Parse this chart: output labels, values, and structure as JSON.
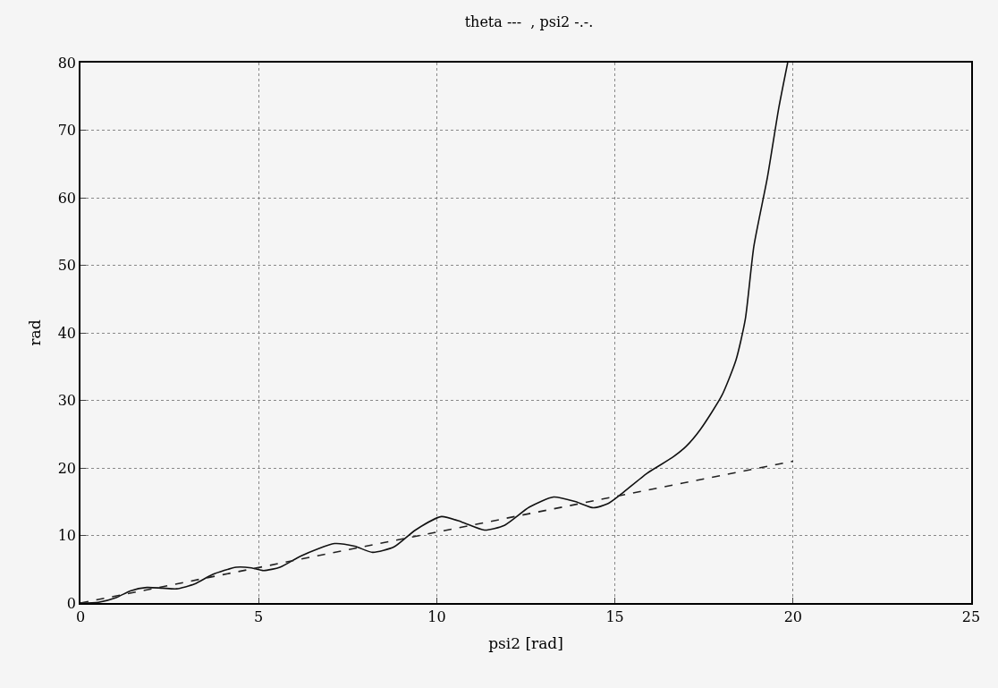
{
  "chart_data": {
    "type": "line",
    "title": "theta ---  , psi2 -.-.",
    "xlabel": "psi2 [rad]",
    "ylabel": "rad",
    "xlim": [
      0,
      25
    ],
    "ylim": [
      0,
      80
    ],
    "xticks": [
      0,
      5,
      10,
      15,
      20,
      25
    ],
    "yticks": [
      0,
      10,
      20,
      30,
      40,
      50,
      60,
      70,
      80
    ],
    "grid": true,
    "series": [
      {
        "color": "#111111",
        "line_style": "solid",
        "x": [
          0,
          0.5,
          1.0,
          1.4,
          1.86,
          2.3,
          2.7,
          3.2,
          3.7,
          4.37,
          4.8,
          5.14,
          5.6,
          6.2,
          7.13,
          7.7,
          8.2,
          8.8,
          9.4,
          10.13,
          10.7,
          11.34,
          11.9,
          12.6,
          13.28,
          13.9,
          14.4,
          14.8,
          15.17,
          15.9,
          16.6,
          17.0,
          17.4,
          18.0,
          18.4,
          18.66,
          18.9,
          19.28,
          19.6,
          19.85
        ],
        "values": [
          0,
          0.1,
          0.8,
          1.8,
          2.3,
          2.2,
          2.1,
          2.8,
          4.2,
          5.3,
          5.2,
          4.8,
          5.3,
          7.0,
          8.8,
          8.4,
          7.5,
          8.3,
          10.8,
          12.8,
          12.0,
          10.8,
          11.5,
          14.2,
          15.7,
          15.0,
          14.1,
          14.7,
          16.1,
          19.2,
          21.5,
          23.2,
          25.7,
          30.7,
          36.0,
          42.0,
          52.8,
          63.0,
          73.3,
          80.0
        ]
      },
      {
        "color": "#222222",
        "line_style": "dashed",
        "x": [
          0,
          20
        ],
        "values": [
          0,
          21
        ]
      }
    ]
  }
}
